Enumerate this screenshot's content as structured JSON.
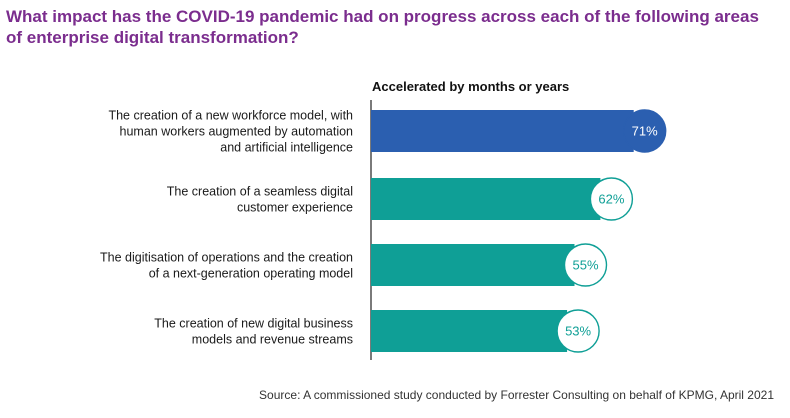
{
  "page": {
    "title": "What impact has the COVID-19 pandemic had on progress across each of the following areas of enterprise digital transformation?",
    "source": "Source: A commissioned study conducted by Forrester Consulting on behalf of KPMG, April 2021"
  },
  "chart_data": {
    "type": "bar",
    "orientation": "horizontal",
    "series_header": "Accelerated by months or years",
    "categories": [
      [
        "The creation of a new workforce model, with",
        "human workers augmented by automation",
        "and artificial intelligence"
      ],
      [
        "The creation of a seamless digital",
        "customer experience"
      ],
      [
        "The digitisation of operations and the creation",
        "of a next-generation operating model"
      ],
      [
        "The creation of new digital business",
        "models and revenue streams"
      ]
    ],
    "values": [
      71,
      62,
      55,
      53
    ],
    "value_labels": [
      "71%",
      "62%",
      "55%",
      "53%"
    ],
    "unit": "%",
    "xlim": [
      0,
      100
    ],
    "grid": false,
    "colors": {
      "highlight": "#2b5fb0",
      "bar": "#0f9f96",
      "divider": "#222222",
      "title": "#7b2d8e"
    },
    "highlight_index": 0
  }
}
